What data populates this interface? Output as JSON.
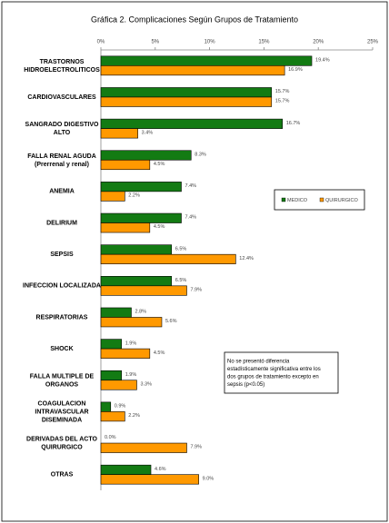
{
  "chart_data": {
    "type": "bar",
    "orientation": "horizontal",
    "title": "Gráfica 2.  Complicaciones Según Grupos de Tratamiento",
    "categories": [
      "TRASTORNOS\nHIDROELECTROLITICOS",
      "CARDIOVASCULARES",
      "SANGRADO DIGESTIVO\nALTO",
      "FALLA RENAL AGUDA\n(Prerrenal y renal)",
      "ANEMIA",
      "DELIRIUM",
      "SEPSIS",
      "INFECCION LOCALIZADA",
      "RESPIRATORIAS",
      "SHOCK",
      "FALLA MULTIPLE DE\nORGANOS",
      "COAGULACION\nINTRAVASCULAR\nDISEMINADA",
      "DERIVADAS DEL ACTO\nQUIRURGICO",
      "OTRAS"
    ],
    "series": [
      {
        "name": "MEDICO",
        "color": "#137b13",
        "values": [
          19.4,
          15.7,
          16.7,
          8.3,
          7.4,
          7.4,
          6.5,
          6.5,
          2.8,
          1.9,
          1.9,
          0.9,
          0.0,
          4.6
        ],
        "value_labels": [
          "19.4%",
          "15.7%",
          "16.7%",
          "8.3%",
          "7.4%",
          "7.4%",
          "6.5%",
          "6.5%",
          "2.8%",
          "1.9%",
          "1.9%",
          "0.9%",
          "0.0%",
          "4.6%"
        ]
      },
      {
        "name": "QUIRURGICO",
        "color": "#ff9900",
        "values": [
          16.9,
          15.7,
          3.4,
          4.5,
          2.2,
          4.5,
          12.4,
          7.9,
          5.6,
          4.5,
          3.3,
          2.2,
          7.9,
          9.0
        ],
        "value_labels": [
          "16.9%",
          "15.7%",
          "3.4%",
          "4.5%",
          "2.2%",
          "4.5%",
          "12.4%",
          "7.9%",
          "5.6%",
          "4.5%",
          "3.3%",
          "2.2%",
          "7.9%",
          "9.0%"
        ]
      }
    ],
    "xlim": [
      0,
      25
    ],
    "xticks": [
      {
        "value": 0,
        "label": "0%"
      },
      {
        "value": 5,
        "label": "5%"
      },
      {
        "value": 10,
        "label": "10%"
      },
      {
        "value": 15,
        "label": "15%"
      },
      {
        "value": 20,
        "label": "20%"
      },
      {
        "value": 25,
        "label": "25%"
      }
    ],
    "grid": false,
    "legend": "right",
    "annotation": "No se presentó diferencia\nestadísticamente significativa entre los\ndos grupos de tratamiento excepto en\nsepsis  (p<0.05)"
  }
}
